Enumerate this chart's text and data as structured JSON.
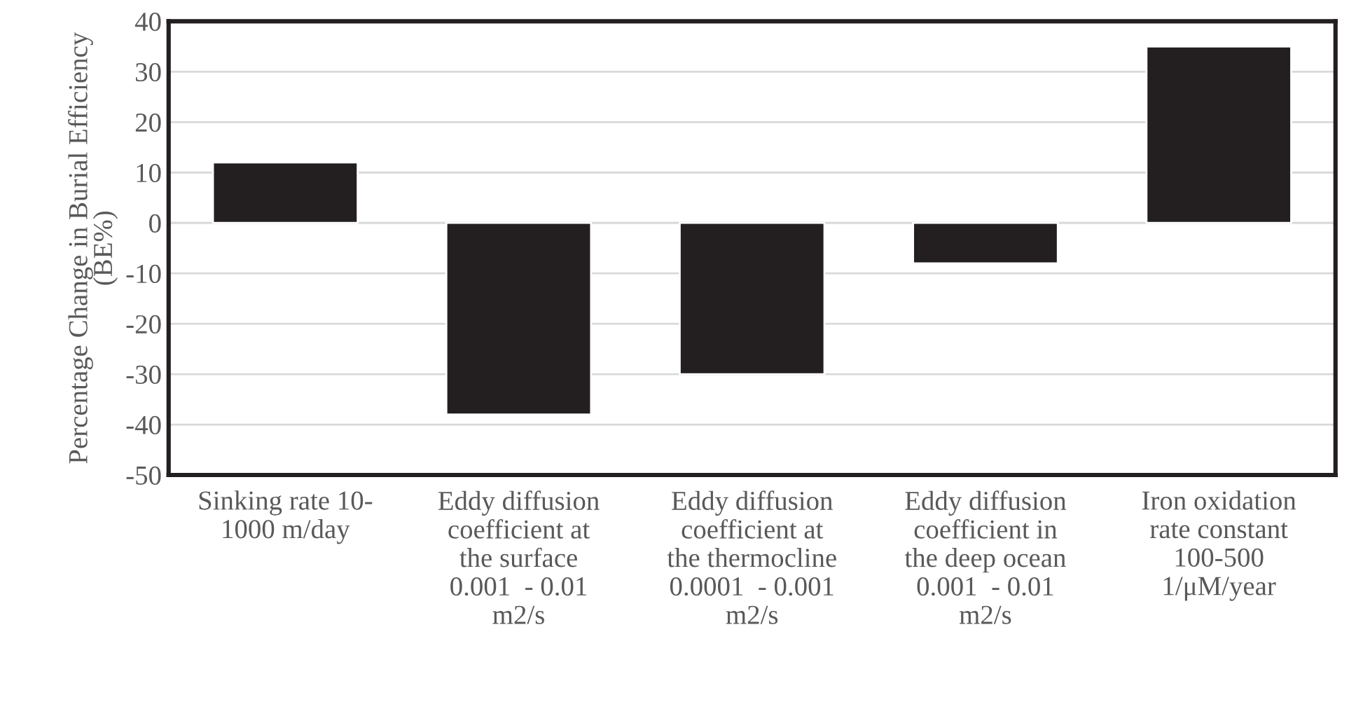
{
  "chart_data": {
    "type": "bar",
    "ylabel": "Percentage Change in Burial Efficiency\n(BE%)",
    "categories": [
      "Sinking rate 10-\n1000 m/day",
      "Eddy diffusion\ncoefficient at\nthe surface\n0.001  - 0.01\nm2/s",
      "Eddy diffusion\ncoefficient at\nthe thermocline\n0.0001  - 0.001\nm2/s",
      "Eddy diffusion\ncoefficient in\nthe deep ocean\n0.001  - 0.01\nm2/s",
      "Iron oxidation\nrate constant\n100-500\n1/μM/year"
    ],
    "values": [
      12,
      -38,
      -30,
      -8,
      35
    ],
    "color": "#231f20",
    "ylim": [
      -50,
      40
    ],
    "yticks": [
      -50,
      -40,
      -30,
      -20,
      -10,
      0,
      10,
      20,
      30,
      40
    ],
    "grid": "y",
    "legend": false
  }
}
